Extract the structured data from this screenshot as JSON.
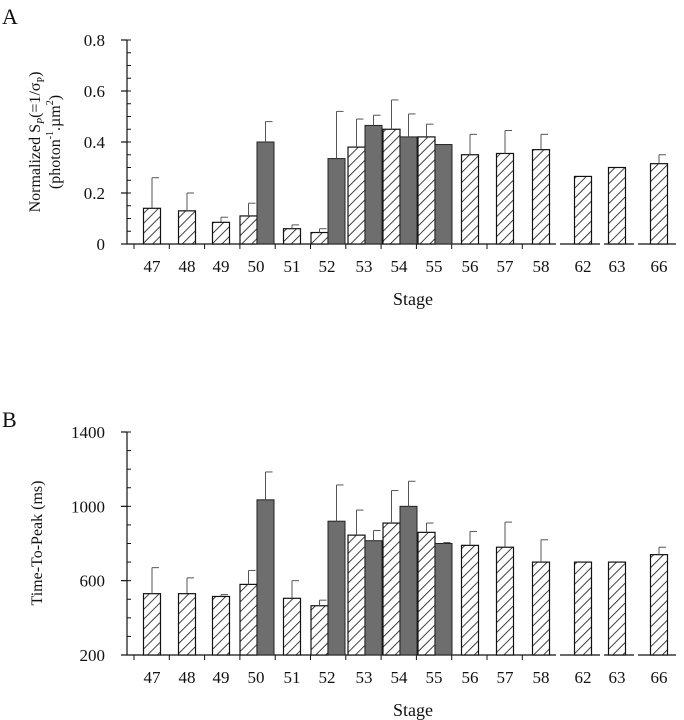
{
  "chart_data": [
    {
      "type": "bar",
      "panel_label": "A",
      "ylabel_lines": [
        "Normalized S",
        "(photon",
        ".µm",
        ")"
      ],
      "ylabel_sub_p": "P",
      "ylabel_eq": "(=1/σ",
      "ylabel_close": ")",
      "ylabel_exp1": "-1",
      "ylabel_exp2": "2",
      "xlabel": "Stage",
      "ylim": [
        0,
        0.8
      ],
      "yticks": [
        "0",
        "0.2",
        "0.4",
        "0.6",
        "0.8"
      ],
      "ytick_values": [
        0,
        0.2,
        0.4,
        0.6,
        0.8
      ],
      "categories": [
        "47",
        "48",
        "49",
        "50",
        "51",
        "52",
        "53",
        "54",
        "55",
        "56",
        "57",
        "58",
        "62",
        "63",
        "66"
      ],
      "series": [
        {
          "style": "hatched",
          "values": [
            0.14,
            0.13,
            0.085,
            0.11,
            0.06,
            0.045,
            0.38,
            0.45,
            0.42,
            0.35,
            0.355,
            0.37,
            0.265,
            0.3,
            0.315
          ],
          "errors": [
            0.12,
            0.07,
            0.02,
            0.05,
            0.015,
            0.015,
            0.11,
            0.115,
            0.05,
            0.08,
            0.09,
            0.06,
            0,
            0,
            0.035
          ]
        },
        {
          "style": "solid",
          "color": "#6e6e6e",
          "values": [
            null,
            null,
            null,
            0.4,
            null,
            0.335,
            0.465,
            0.42,
            0.39,
            null,
            null,
            null,
            null,
            null,
            null
          ],
          "errors": [
            null,
            null,
            null,
            0.08,
            null,
            0.185,
            0.04,
            0.09,
            0.0,
            null,
            null,
            null,
            null,
            null,
            null
          ]
        }
      ]
    },
    {
      "type": "bar",
      "panel_label": "B",
      "ylabel": "Time-To-Peak (ms)",
      "xlabel": "Stage",
      "ylim": [
        200,
        1400
      ],
      "yticks": [
        "200",
        "600",
        "1000",
        "1400"
      ],
      "ytick_values": [
        200,
        600,
        1000,
        1400
      ],
      "categories": [
        "47",
        "48",
        "49",
        "50",
        "51",
        "52",
        "53",
        "54",
        "55",
        "56",
        "57",
        "58",
        "62",
        "63",
        "66"
      ],
      "series": [
        {
          "style": "hatched",
          "values": [
            530,
            530,
            515,
            580,
            505,
            465,
            845,
            910,
            860,
            790,
            780,
            700,
            700,
            700,
            740
          ],
          "errors": [
            140,
            85,
            10,
            75,
            95,
            30,
            135,
            175,
            50,
            75,
            135,
            120,
            0,
            0,
            40
          ]
        },
        {
          "style": "solid",
          "color": "#6e6e6e",
          "values": [
            null,
            null,
            null,
            1035,
            null,
            920,
            815,
            1000,
            null,
            null,
            null,
            null,
            null,
            null,
            null
          ],
          "errors": [
            null,
            null,
            null,
            150,
            null,
            195,
            55,
            135,
            null,
            null,
            null,
            null,
            null,
            null,
            null
          ]
        },
        {
          "style": "solid-thin",
          "color": "#6e6e6e",
          "values": [
            null,
            null,
            null,
            null,
            null,
            null,
            null,
            null,
            800,
            null,
            null,
            null,
            null,
            null,
            null
          ],
          "errors": [
            null,
            null,
            null,
            null,
            null,
            null,
            null,
            null,
            5,
            null,
            null,
            null,
            null,
            null,
            null
          ]
        }
      ]
    }
  ]
}
